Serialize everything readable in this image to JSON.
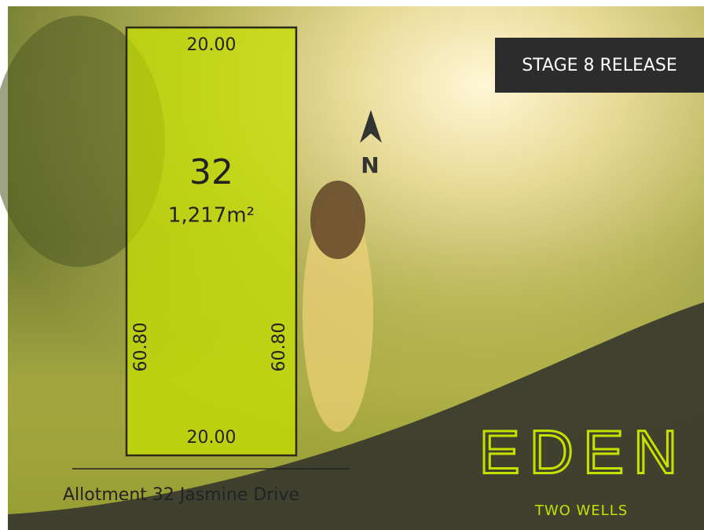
{
  "lot": {
    "number": "32",
    "area": "1,217m²",
    "top_width": "20.00",
    "bottom_width": "20.00",
    "left_depth": "60.80",
    "right_depth": "60.80"
  },
  "north": "N",
  "badge": "STAGE 8 RELEASE",
  "caption": "Allotment 32 Jasmine Drive",
  "brand": {
    "name": "EDEN",
    "location": "TWO WELLS"
  }
}
